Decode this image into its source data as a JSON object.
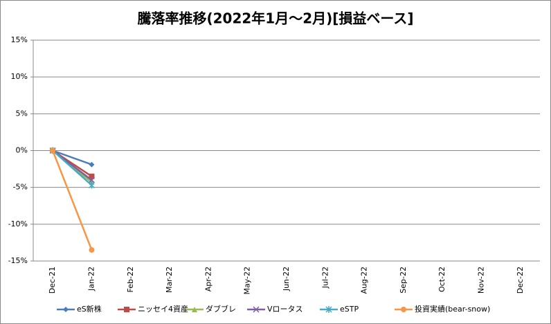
{
  "chart_data": {
    "type": "line",
    "title": "騰落率推移(2022年1月～2月)[損益ベース]",
    "categories": [
      "Dec-21",
      "Jan-22",
      "Feb-22",
      "Mar-22",
      "Apr-22",
      "May-22",
      "Jun-22",
      "Jul-22",
      "Aug-22",
      "Sep-22",
      "Oct-22",
      "Nov-22",
      "Dec-22"
    ],
    "ylim": [
      {
        "value": -15,
        "label": "-15%"
      },
      {
        "value": 15,
        "label": "15%"
      }
    ],
    "yticks": [
      {
        "value": -15,
        "label": "-15%"
      },
      {
        "value": -10,
        "label": "-10%"
      },
      {
        "value": -5,
        "label": "-5%"
      },
      {
        "value": 0,
        "label": "0%"
      },
      {
        "value": 5,
        "label": "5%"
      },
      {
        "value": 10,
        "label": "10%"
      },
      {
        "value": 15,
        "label": "15%"
      }
    ],
    "grid": true,
    "legend": "bottom",
    "series": [
      {
        "name": "eS新株",
        "color": "#4a7ebb",
        "marker": "diamond",
        "values": [
          0,
          -1.9,
          null,
          null,
          null,
          null,
          null,
          null,
          null,
          null,
          null,
          null,
          null
        ]
      },
      {
        "name": "ニッセイ4資産",
        "color": "#be4b48",
        "marker": "square",
        "values": [
          0,
          -3.5,
          null,
          null,
          null,
          null,
          null,
          null,
          null,
          null,
          null,
          null,
          null
        ]
      },
      {
        "name": "ダブブレ",
        "color": "#98b954",
        "marker": "triangle",
        "values": [
          0,
          -4.3,
          null,
          null,
          null,
          null,
          null,
          null,
          null,
          null,
          null,
          null,
          null
        ]
      },
      {
        "name": "Vロータス",
        "color": "#7d60a0",
        "marker": "x",
        "values": [
          0,
          -4.0,
          null,
          null,
          null,
          null,
          null,
          null,
          null,
          null,
          null,
          null,
          null
        ]
      },
      {
        "name": "eSTP",
        "color": "#46aac5",
        "marker": "star",
        "values": [
          0,
          -4.7,
          null,
          null,
          null,
          null,
          null,
          null,
          null,
          null,
          null,
          null,
          null
        ]
      },
      {
        "name": "投資実績(bear-snow)",
        "color": "#f79646",
        "marker": "circle",
        "values": [
          0,
          -13.5,
          null,
          null,
          null,
          null,
          null,
          null,
          null,
          null,
          null,
          null,
          null
        ]
      }
    ]
  }
}
